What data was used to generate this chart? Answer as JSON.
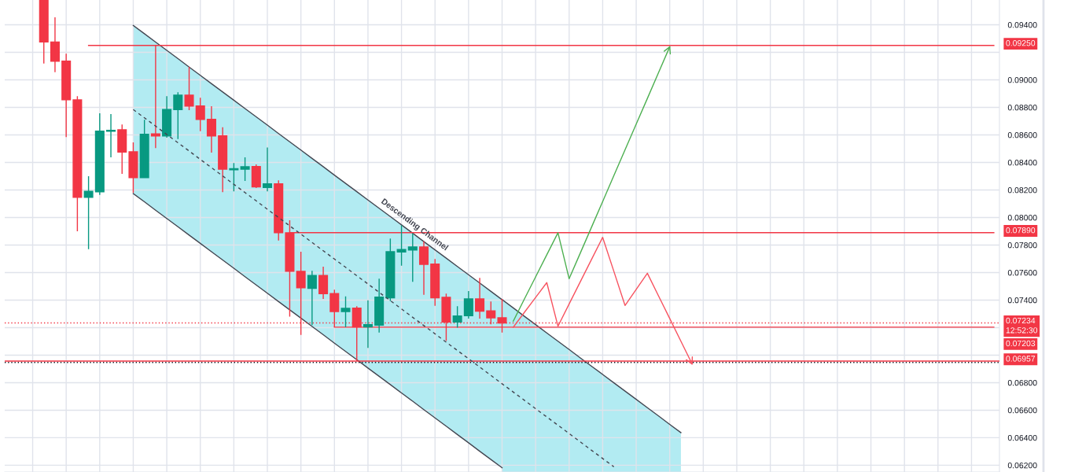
{
  "chart_data": {
    "type": "candlestick",
    "categories": [
      null,
      null,
      null,
      null,
      null,
      null,
      null,
      null,
      null,
      null,
      null,
      null,
      null,
      null,
      null,
      null,
      null,
      null,
      null,
      null,
      null,
      null,
      null,
      null,
      null,
      null,
      null,
      null,
      null,
      null,
      null,
      null,
      null,
      null,
      null,
      null,
      null,
      null,
      null,
      null,
      null,
      null,
      null,
      null,
      null,
      null,
      null,
      null,
      null,
      null,
      null,
      null,
      null,
      null,
      null,
      null,
      null,
      null,
      null,
      null,
      null,
      null,
      null,
      null,
      null,
      null,
      null,
      null,
      null,
      null,
      null,
      null,
      null,
      null,
      null,
      null,
      null,
      null,
      null,
      null,
      null,
      null,
      null,
      null,
      null,
      null,
      null,
      null,
      null
    ],
    "ohlc": [
      null,
      null,
      null,
      [
        0.0958,
        0.0958,
        0.09119,
        0.09275
      ],
      [
        0.09275,
        0.09454,
        0.09056,
        0.09136
      ],
      [
        0.09136,
        0.0919,
        0.08584,
        0.08856
      ],
      [
        0.08854,
        0.08881,
        0.079,
        0.08146
      ],
      [
        0.08146,
        0.083,
        0.0777,
        0.0819
      ],
      [
        0.08187,
        0.08757,
        0.08164,
        0.08627
      ],
      [
        0.08626,
        0.08751,
        0.08437,
        0.08633
      ],
      [
        0.08637,
        0.08675,
        0.08317,
        0.08475
      ],
      [
        0.08477,
        0.08546,
        0.0818,
        0.0829
      ],
      [
        0.0829,
        0.0871,
        0.0829,
        0.08605
      ],
      [
        0.08607,
        0.0925,
        0.08504,
        0.08593
      ],
      [
        0.08593,
        0.08881,
        0.0858,
        0.08784
      ],
      [
        0.08784,
        0.0891,
        0.0857,
        0.08889
      ],
      [
        0.08889,
        0.09094,
        0.0878,
        0.08809
      ],
      [
        0.0881,
        0.0887,
        0.08627,
        0.08713
      ],
      [
        0.08713,
        0.08809,
        0.08471,
        0.08593
      ],
      [
        0.08593,
        0.08656,
        0.08184,
        0.08351
      ],
      [
        0.08347,
        0.08395,
        0.0819,
        0.08355
      ],
      [
        0.08351,
        0.08437,
        0.08266,
        0.08369
      ],
      [
        0.0837,
        0.08386,
        0.08214,
        0.08222
      ],
      [
        0.08218,
        0.08508,
        0.0819,
        0.08245
      ],
      [
        0.08245,
        0.0827,
        0.07833,
        0.0789
      ],
      [
        0.07889,
        0.0798,
        0.07279,
        0.07609
      ],
      [
        0.07609,
        0.07751,
        0.07147,
        0.0749
      ],
      [
        0.07485,
        0.07613,
        0.07218,
        0.07578
      ],
      [
        0.07578,
        0.07643,
        0.07409,
        0.07447
      ],
      [
        0.07447,
        0.07476,
        0.07203,
        0.07317
      ],
      [
        0.07317,
        0.07427,
        0.07203,
        0.0734
      ],
      [
        0.07342,
        0.07356,
        0.06957,
        0.07205
      ],
      [
        0.07205,
        0.07399,
        0.07053,
        0.07222
      ],
      [
        0.07218,
        0.07555,
        0.07164,
        0.07422
      ],
      [
        0.07416,
        0.07847,
        0.07393,
        0.07751
      ],
      [
        0.0775,
        0.07942,
        0.0765,
        0.07767
      ],
      [
        0.07764,
        0.07885,
        0.07533,
        0.07786
      ],
      [
        0.07786,
        0.07827,
        0.07439,
        0.0766
      ],
      [
        0.07662,
        0.07698,
        0.07359,
        0.07416
      ],
      [
        0.0742,
        0.07447,
        0.07104,
        0.07241
      ],
      [
        0.07241,
        0.07356,
        0.072,
        0.07285
      ],
      [
        0.07287,
        0.07466,
        0.07266,
        0.07409
      ],
      [
        0.07409,
        0.07561,
        0.07266,
        0.07319
      ],
      [
        0.07321,
        0.0739,
        0.07224,
        0.07271
      ],
      [
        0.07271,
        0.07409,
        0.07164,
        0.07234
      ],
      null,
      null,
      null,
      null,
      null,
      null,
      null,
      null,
      null,
      null,
      null,
      null,
      null,
      null,
      null,
      null,
      null,
      null,
      null,
      null,
      null,
      null,
      null,
      null,
      null,
      null,
      null,
      null,
      null,
      null,
      null,
      null,
      null,
      null,
      null,
      null,
      null,
      null,
      null,
      null,
      null,
      null,
      null,
      null
    ],
    "colors": [
      null,
      null,
      null,
      "#f23645",
      "#f23645",
      "#f23645",
      "#f23645",
      "#089981",
      "#089981",
      "#089981",
      "#f23645",
      "#f23645",
      "#089981",
      "#f23645",
      "#089981",
      "#089981",
      "#f23645",
      "#f23645",
      "#f23645",
      "#f23645",
      "#089981",
      "#089981",
      "#f23645",
      "#089981",
      "#f23645",
      "#f23645",
      "#f23645",
      "#089981",
      "#f23645",
      "#f23645",
      "#089981",
      "#f23645",
      "#089981",
      "#089981",
      "#089981",
      "#089981",
      "#089981",
      "#f23645",
      "#f23645",
      "#f23645",
      "#089981",
      "#089981",
      "#f23645",
      "#f23645",
      "#f23645",
      null,
      null,
      null,
      null,
      null,
      null,
      null,
      null,
      null,
      null,
      null,
      null,
      null,
      null,
      null,
      null,
      null,
      null,
      null,
      null,
      null,
      null,
      null,
      null,
      null,
      null,
      null,
      null,
      null,
      null,
      null,
      null,
      null,
      null,
      null,
      null,
      null,
      null,
      null,
      null,
      null,
      null,
      null,
      null
    ],
    "series": [
      {
        "type": "line",
        "name": "Descending Channel",
        "color": "#434651",
        "values": [
          null,
          null,
          null,
          null,
          null,
          null,
          null,
          null,
          null,
          null,
          null,
          0.09395,
          0.09335,
          0.09274,
          0.09214,
          0.09154,
          0.09093,
          0.09033,
          0.08972,
          0.08912,
          0.08852,
          0.08791,
          0.08731,
          0.08671,
          0.0861,
          0.0855,
          0.0849,
          0.08429,
          0.08369,
          0.08308,
          0.08248,
          0.08188,
          0.08127,
          0.08067,
          0.08007,
          0.07946,
          0.07886,
          0.07825,
          0.07765,
          0.07705,
          0.07644,
          0.07584,
          0.07524,
          0.07463,
          0.07403,
          null,
          null,
          null,
          null,
          null,
          null,
          null,
          null,
          null,
          null,
          null,
          null,
          null,
          null,
          null,
          null,
          null,
          null,
          null,
          null,
          null,
          null,
          null,
          null,
          null,
          null,
          null,
          null,
          null,
          null,
          null,
          null,
          null,
          null,
          null,
          null,
          null,
          null,
          null,
          null,
          null,
          null,
          null,
          null
        ]
      },
      {
        "type": "line",
        "color": "#434651",
        "values": [
          null,
          null,
          null,
          null,
          null,
          null,
          null,
          null,
          null,
          null,
          null,
          0.08174,
          0.08114,
          0.08053,
          0.07993,
          0.07933,
          0.07872,
          0.07812,
          0.07751,
          0.07691,
          0.07631,
          0.0757,
          0.0751,
          0.0745,
          0.07389,
          0.07329,
          0.07269,
          0.07208,
          0.07148,
          0.07087,
          0.07027,
          0.06967,
          0.06906,
          0.06846,
          0.06786,
          0.06725,
          0.06665,
          0.06604,
          0.06544,
          0.06484,
          0.06423,
          0.06363,
          0.06302,
          0.06242,
          0.06182,
          null,
          null,
          null,
          null,
          null,
          null,
          null,
          null,
          null,
          null,
          null,
          null,
          null,
          null,
          null,
          null,
          null,
          null,
          null,
          null,
          null,
          null,
          null,
          null,
          null,
          null,
          null,
          null,
          null,
          null,
          null,
          null,
          null,
          null,
          null,
          null,
          null,
          null,
          null,
          null,
          null,
          null,
          null,
          null
        ]
      },
      {
        "type": "line",
        "color": "#434651",
        "line_style": "dashed",
        "values": [
          null,
          null,
          null,
          null,
          null,
          null,
          null,
          null,
          null,
          null,
          null,
          0.08784,
          0.08724,
          0.08664,
          0.08603,
          0.08543,
          0.08483,
          0.08422,
          0.08362,
          0.08302,
          0.08241,
          0.08181,
          0.08121,
          0.0806,
          0.08,
          0.07939,
          0.07879,
          0.07819,
          0.07758,
          0.07698,
          0.07638,
          0.07577,
          0.07517,
          0.07456,
          0.07396,
          0.07336,
          0.07275,
          0.07215,
          0.07155,
          0.07094,
          0.07034,
          0.06974,
          0.06913,
          0.06853,
          0.06792,
          0.06732,
          0.06672,
          0.06611,
          0.06551,
          0.06491,
          0.0643,
          0.0637,
          0.06309,
          0.06249,
          0.06189,
          null,
          null,
          null,
          null,
          null,
          null,
          null,
          null,
          null,
          null,
          null,
          null,
          null,
          null,
          null,
          null,
          null,
          null,
          null,
          null,
          null,
          null,
          null,
          null,
          null,
          null,
          null,
          null,
          null,
          null,
          null,
          null,
          null,
          null
        ],
        "lower": [
          null,
          null,
          null,
          null,
          null,
          null,
          null,
          null,
          null,
          null,
          null,
          0.08174,
          0.08114,
          0.08053,
          0.07993,
          0.07933,
          0.07872,
          0.07812,
          0.07751,
          0.07691,
          0.07631,
          0.0757,
          0.0751,
          0.0745,
          0.07389,
          0.07329,
          0.07269,
          0.07208,
          0.07148,
          0.07087,
          0.07027,
          0.06967,
          0.06906,
          0.06846,
          0.06786,
          0.06725,
          0.06665,
          0.06604,
          0.06544,
          0.06484,
          0.06423,
          0.06363,
          0.06302,
          0.06242,
          0.06182,
          null,
          null,
          null,
          null,
          null,
          null,
          null,
          null,
          null,
          null,
          null,
          null,
          null,
          null,
          null,
          null,
          null,
          null,
          null,
          null,
          null,
          null,
          null,
          null,
          null,
          null,
          null,
          null,
          null,
          null,
          null,
          null,
          null,
          null,
          null,
          null,
          null,
          null,
          null,
          null,
          null,
          null,
          null,
          null
        ],
        "upper": [
          null,
          null,
          null,
          null,
          null,
          null,
          null,
          null,
          null,
          null,
          null,
          0.09395,
          0.09335,
          0.09274,
          0.09214,
          0.09154,
          0.09093,
          0.09033,
          0.08972,
          0.08912,
          0.08852,
          0.08791,
          0.08731,
          0.08671,
          0.0861,
          0.0855,
          0.0849,
          0.08429,
          0.08369,
          0.08308,
          0.08248,
          0.08188,
          0.08127,
          0.08067,
          0.08007,
          0.07946,
          0.07886,
          0.07825,
          0.07765,
          0.07705,
          0.07644,
          0.07584,
          0.07524,
          0.07463,
          0.07403,
          null,
          null,
          null,
          null,
          null,
          null,
          null,
          null,
          null,
          null,
          null,
          null,
          null,
          null,
          null,
          null,
          null,
          null,
          null,
          null,
          null,
          null,
          null,
          null,
          null,
          null,
          null,
          null,
          null,
          null,
          null,
          null,
          null,
          null,
          null,
          null,
          null,
          null,
          null,
          null,
          null,
          null,
          null,
          null
        ]
      },
      {
        "type": "area",
        "color": "#434651",
        "values": [
          null,
          null,
          null,
          null,
          null,
          null,
          null,
          null,
          null,
          null,
          null,
          null,
          null,
          null,
          null,
          null,
          null,
          null,
          null,
          null,
          null,
          null,
          null,
          null,
          null,
          null,
          null,
          null,
          null,
          null,
          null,
          null,
          null,
          null,
          null,
          null,
          null,
          null,
          null,
          null,
          null,
          null,
          null,
          null,
          0.07403,
          0.07343,
          0.07282,
          0.07222,
          0.07161,
          0.07101,
          0.07041,
          0.0698,
          0.0692,
          0.0686,
          0.06799,
          0.06739,
          0.06679,
          0.06618,
          0.06558,
          0.06497,
          0.06437,
          null,
          null,
          null,
          null,
          null,
          null,
          null,
          null,
          null,
          null,
          null,
          null,
          null,
          null,
          null,
          null,
          null,
          null,
          null,
          null,
          null,
          null,
          null,
          null,
          null,
          null,
          null,
          null
        ]
      },
      {
        "type": "line",
        "color": "#f23645",
        "values": [
          null,
          null,
          null,
          null,
          null,
          null,
          null,
          0.0925,
          0.0925,
          0.0925,
          0.0925,
          0.0925,
          0.0925,
          0.0925,
          0.0925,
          0.0925,
          0.0925,
          0.0925,
          0.0925,
          0.0925,
          0.0925,
          0.0925,
          0.0925,
          0.0925,
          0.0925,
          0.0925,
          0.0925,
          0.0925,
          0.0925,
          0.0925,
          0.0925,
          0.0925,
          0.0925,
          0.0925,
          0.0925,
          0.0925,
          0.0925,
          0.0925,
          0.0925,
          0.0925,
          0.0925,
          0.0925,
          0.0925,
          0.0925,
          0.0925,
          0.0925,
          0.0925,
          0.0925,
          0.0925,
          0.0925,
          0.0925,
          0.0925,
          0.0925,
          0.0925,
          0.0925,
          0.0925,
          0.0925,
          0.0925,
          0.0925,
          0.0925,
          0.0925,
          0.0925,
          0.0925,
          0.0925,
          0.0925,
          0.0925,
          0.0925,
          0.0925,
          0.0925,
          0.0925,
          0.0925,
          0.0925,
          0.0925,
          0.0925,
          0.0925,
          0.0925,
          0.0925,
          0.0925,
          0.0925,
          0.0925,
          0.0925,
          0.0925,
          0.0925,
          0.0925,
          0.0925,
          0.0925,
          0.0925,
          0.0925,
          0.0925
        ],
        "value_labels": [
          null,
          null,
          null,
          null,
          null,
          null,
          null,
          null,
          null,
          null,
          null,
          null,
          null,
          null,
          null,
          null,
          null,
          null,
          null,
          null,
          null,
          null,
          null,
          null,
          null,
          null,
          null,
          null,
          null,
          null,
          null,
          null,
          null,
          null,
          null,
          null,
          null,
          null,
          null,
          null,
          null,
          null,
          null,
          null,
          null,
          null,
          null,
          null,
          null,
          null,
          null,
          null,
          null,
          null,
          null,
          null,
          null,
          null,
          null,
          null,
          null,
          null,
          null,
          null,
          null,
          null,
          null,
          null,
          null,
          null,
          null,
          null,
          null,
          null,
          null,
          null,
          null,
          null,
          null,
          null,
          null,
          null,
          null,
          null,
          null,
          null,
          null,
          null,
          "0.09250"
        ]
      },
      {
        "type": "line",
        "color": "#f23645",
        "values": [
          null,
          null,
          null,
          null,
          null,
          null,
          null,
          null,
          null,
          null,
          null,
          null,
          null,
          null,
          null,
          null,
          null,
          null,
          null,
          null,
          null,
          null,
          null,
          null,
          null,
          0.0789,
          0.0789,
          0.0789,
          0.0789,
          0.0789,
          0.0789,
          0.0789,
          0.0789,
          0.0789,
          0.0789,
          0.0789,
          0.0789,
          0.0789,
          0.0789,
          0.0789,
          0.0789,
          0.0789,
          0.0789,
          0.0789,
          0.0789,
          0.0789,
          0.0789,
          0.0789,
          0.0789,
          0.0789,
          0.0789,
          0.0789,
          0.0789,
          0.0789,
          0.0789,
          0.0789,
          0.0789,
          0.0789,
          0.0789,
          0.0789,
          0.0789,
          0.0789,
          0.0789,
          0.0789,
          0.0789,
          0.0789,
          0.0789,
          0.0789,
          0.0789,
          0.0789,
          0.0789,
          0.0789,
          0.0789,
          0.0789,
          0.0789,
          0.0789,
          0.0789,
          0.0789,
          0.0789,
          0.0789,
          0.0789,
          0.0789,
          0.0789,
          0.0789,
          0.0789,
          0.0789,
          0.0789,
          0.0789,
          0.0789
        ],
        "value_labels": [
          null,
          null,
          null,
          null,
          null,
          null,
          null,
          null,
          null,
          null,
          null,
          null,
          null,
          null,
          null,
          null,
          null,
          null,
          null,
          null,
          null,
          null,
          null,
          null,
          null,
          null,
          null,
          null,
          null,
          null,
          null,
          null,
          null,
          null,
          null,
          null,
          null,
          null,
          null,
          null,
          null,
          null,
          null,
          null,
          null,
          null,
          null,
          null,
          null,
          null,
          null,
          null,
          null,
          null,
          null,
          null,
          null,
          null,
          null,
          null,
          null,
          null,
          null,
          null,
          null,
          null,
          null,
          null,
          null,
          null,
          null,
          null,
          null,
          null,
          null,
          null,
          null,
          null,
          null,
          null,
          null,
          null,
          null,
          null,
          null,
          null,
          null,
          null,
          "0.07890"
        ]
      },
      {
        "type": "line",
        "color": "#f23645",
        "values": [
          null,
          null,
          null,
          null,
          null,
          null,
          null,
          null,
          null,
          null,
          null,
          null,
          null,
          null,
          null,
          null,
          null,
          null,
          null,
          null,
          null,
          null,
          null,
          null,
          null,
          null,
          null,
          null,
          null,
          0.07203,
          0.07203,
          0.07203,
          0.07203,
          0.07203,
          0.07203,
          0.07203,
          0.07203,
          0.07203,
          0.07203,
          0.07203,
          0.07203,
          0.07203,
          0.07203,
          0.07203,
          0.07203,
          0.07203,
          0.07203,
          0.07203,
          0.07203,
          0.07203,
          0.07203,
          0.07203,
          0.07203,
          0.07203,
          0.07203,
          0.07203,
          0.07203,
          0.07203,
          0.07203,
          0.07203,
          0.07203,
          0.07203,
          0.07203,
          0.07203,
          0.07203,
          0.07203,
          0.07203,
          0.07203,
          0.07203,
          0.07203,
          0.07203,
          0.07203,
          0.07203,
          0.07203,
          0.07203,
          0.07203,
          0.07203,
          0.07203,
          0.07203,
          0.07203,
          0.07203,
          0.07203,
          0.07203,
          0.07203,
          0.07203,
          0.07203,
          0.07203,
          0.07203,
          0.07203
        ],
        "value_labels": [
          null,
          null,
          null,
          null,
          null,
          null,
          null,
          null,
          null,
          null,
          null,
          null,
          null,
          null,
          null,
          null,
          null,
          null,
          null,
          null,
          null,
          null,
          null,
          null,
          null,
          null,
          null,
          null,
          null,
          null,
          null,
          null,
          null,
          null,
          null,
          null,
          null,
          null,
          null,
          null,
          null,
          null,
          null,
          null,
          null,
          null,
          null,
          null,
          null,
          null,
          null,
          null,
          null,
          null,
          null,
          null,
          null,
          null,
          null,
          null,
          null,
          null,
          null,
          null,
          null,
          null,
          null,
          null,
          null,
          null,
          null,
          null,
          null,
          null,
          null,
          null,
          null,
          null,
          null,
          null,
          null,
          null,
          null,
          null,
          null,
          null,
          null,
          null,
          "0.07203"
        ]
      },
      {
        "type": "line",
        "color": "#4caf50",
        "values": [
          null,
          null,
          null,
          null,
          null,
          null,
          null,
          null,
          null,
          null,
          null,
          null,
          null,
          null,
          null,
          null,
          null,
          null,
          null,
          null,
          null,
          null,
          null,
          null,
          null,
          null,
          null,
          null,
          null,
          null,
          null,
          null,
          null,
          null,
          null,
          null,
          null,
          null,
          null,
          null,
          null,
          null,
          null,
          null,
          null,
          0.07247,
          0.07408,
          0.07568,
          0.07729,
          0.07889,
          0.07555,
          0.07742,
          0.07929,
          0.08116,
          0.08304,
          0.08491,
          0.08678,
          0.08865,
          0.09053,
          0.0924,
          null,
          null,
          null,
          null,
          null,
          null,
          null,
          null,
          null,
          null,
          null,
          null,
          null,
          null,
          null,
          null,
          null,
          null,
          null,
          null,
          null,
          null,
          null,
          null,
          null,
          null,
          null,
          null,
          null
        ]
      },
      {
        "type": "line",
        "color": "#f7525f",
        "values": [
          null,
          null,
          null,
          null,
          null,
          null,
          null,
          null,
          null,
          null,
          null,
          null,
          null,
          null,
          null,
          null,
          null,
          null,
          null,
          null,
          null,
          null,
          null,
          null,
          null,
          null,
          null,
          null,
          null,
          null,
          null,
          null,
          null,
          null,
          null,
          null,
          null,
          null,
          null,
          null,
          null,
          null,
          null,
          null,
          null,
          0.07203,
          0.07311,
          0.07419,
          0.07527,
          0.0721,
          0.07372,
          0.07533,
          0.07695,
          0.07856,
          0.07609,
          0.07361,
          0.07478,
          0.07595,
          0.0743,
          0.07266,
          0.07101,
          0.06936,
          null,
          null,
          null,
          null,
          null,
          null,
          null,
          null,
          null,
          null,
          null,
          null,
          null,
          null,
          null,
          null,
          null,
          null,
          null,
          null,
          null,
          null,
          null,
          null,
          null,
          null,
          null
        ]
      }
    ],
    "ref_lines": [
      {
        "axis": "y",
        "value": 0.07234,
        "label": "0.07234\n12:52:30",
        "color": "#f23645",
        "line_style": "dotted"
      },
      {
        "axis": "y",
        "value": 0.06957,
        "label": "0.06957",
        "color": "#f23645"
      },
      {
        "axis": "y",
        "value": 0.06947,
        "color": "#131722",
        "line_style": "dotted"
      }
    ],
    "ylim": [
      0.06151,
      0.0958
    ],
    "yticks": [
      {
        "value": 0.062,
        "label": "0.06200"
      },
      {
        "value": 0.064,
        "label": "0.06400"
      },
      {
        "value": 0.066,
        "label": "0.06600"
      },
      {
        "value": 0.068,
        "label": "0.06800"
      },
      {
        "value": 0.07,
        "label": null
      },
      {
        "value": 0.072,
        "label": null
      },
      {
        "value": 0.074,
        "label": "0.07400"
      },
      {
        "value": 0.076,
        "label": "0.07600"
      },
      {
        "value": 0.078,
        "label": "0.07800"
      },
      {
        "value": 0.08,
        "label": "0.08000"
      },
      {
        "value": 0.082,
        "label": "0.08200"
      },
      {
        "value": 0.084,
        "label": "0.08400"
      },
      {
        "value": 0.086,
        "label": "0.08600"
      },
      {
        "value": 0.088,
        "label": "0.08800"
      },
      {
        "value": 0.09,
        "label": "0.09000"
      },
      {
        "value": 0.092,
        "label": null
      },
      {
        "value": 0.094,
        "label": "0.09400"
      }
    ],
    "grid": true,
    "tick_labels": "y"
  }
}
